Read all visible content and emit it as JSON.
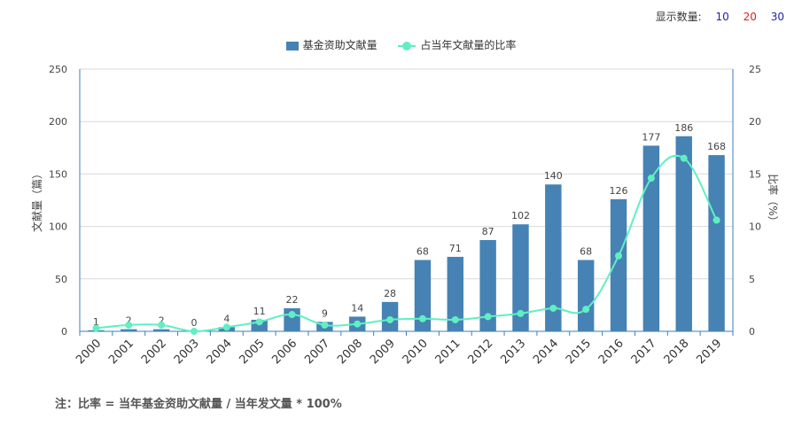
{
  "display_count": {
    "label": "显示数量:",
    "options": [
      {
        "label": "10",
        "color": "#2222aa"
      },
      {
        "label": "20",
        "color": "#dd2222"
      },
      {
        "label": "30",
        "color": "#2222aa"
      }
    ]
  },
  "legend": {
    "bar_label": "基金资助文献量",
    "line_label": "占当年文献量的比率"
  },
  "note": "注：比率 = 当年基金资助文献量 / 当年发文量 * 100%",
  "chart_data": {
    "type": "bar",
    "categories": [
      "2000",
      "2001",
      "2002",
      "2003",
      "2004",
      "2005",
      "2006",
      "2007",
      "2008",
      "2009",
      "2010",
      "2011",
      "2012",
      "2013",
      "2014",
      "2015",
      "2016",
      "2017",
      "2018",
      "2019"
    ],
    "series": [
      {
        "name": "基金资助文献量",
        "type": "bar",
        "axis": "left",
        "color": "#4682b4",
        "values": [
          1,
          2,
          2,
          0,
          4,
          11,
          22,
          9,
          14,
          28,
          68,
          71,
          87,
          102,
          140,
          68,
          126,
          177,
          186,
          168
        ]
      },
      {
        "name": "占当年文献量的比率",
        "type": "line",
        "axis": "right",
        "color": "#60efc2",
        "values": [
          0.3,
          0.6,
          0.6,
          0.0,
          0.4,
          0.9,
          1.6,
          0.6,
          0.7,
          1.1,
          1.2,
          1.1,
          1.4,
          1.7,
          2.2,
          2.1,
          7.2,
          14.6,
          16.5,
          10.6
        ]
      }
    ],
    "ylabel_left": "文献量（篇）",
    "ylabel_right": "比率（%）",
    "ylim_left": [
      0,
      250
    ],
    "ylim_right": [
      0,
      25
    ],
    "yticks_left": [
      "0",
      "50",
      "100",
      "150",
      "200",
      "250"
    ],
    "yticks_right": [
      "0",
      "5",
      "10",
      "15",
      "20",
      "25"
    ],
    "grid": true,
    "legend_position": "top-center"
  }
}
